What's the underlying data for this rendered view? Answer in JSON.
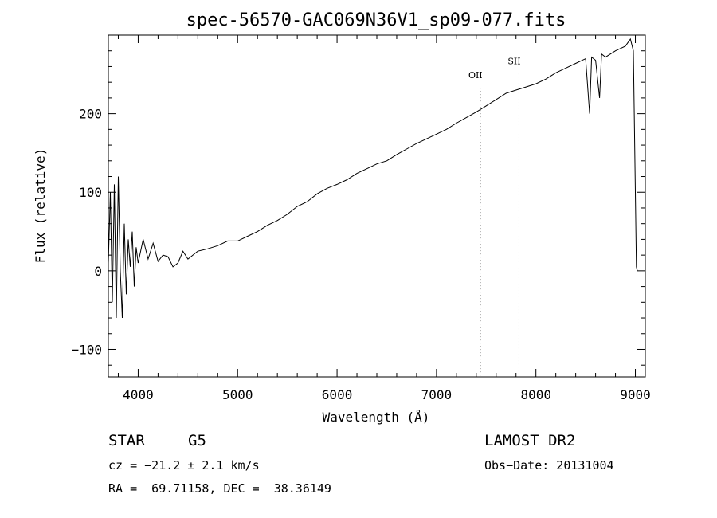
{
  "chart_data": {
    "type": "line",
    "title": "spec-56570-GAC069N36V1_sp09-077.fits",
    "xlabel": "Wavelength (Å)",
    "ylabel": "Flux (relative)",
    "xlim": [
      3700,
      9100
    ],
    "ylim": [
      -135,
      300
    ],
    "xticks": [
      4000,
      5000,
      6000,
      7000,
      8000,
      9000
    ],
    "xtick_labels": [
      "4000",
      "5000",
      "6000",
      "7000",
      "8000",
      "9000"
    ],
    "yticks": [
      -100,
      0,
      100,
      200
    ],
    "ytick_labels": [
      "−100",
      "0",
      "100",
      "200"
    ],
    "grid": false,
    "series": [
      {
        "name": "spectrum",
        "x": [
          3700,
          3720,
          3740,
          3760,
          3780,
          3800,
          3820,
          3840,
          3860,
          3880,
          3900,
          3920,
          3940,
          3960,
          3980,
          4000,
          4050,
          4100,
          4150,
          4200,
          4250,
          4300,
          4350,
          4400,
          4450,
          4500,
          4550,
          4600,
          4700,
          4800,
          4900,
          5000,
          5100,
          5200,
          5300,
          5400,
          5500,
          5600,
          5700,
          5800,
          5900,
          6000,
          6100,
          6200,
          6300,
          6400,
          6500,
          6600,
          6700,
          6800,
          6900,
          7000,
          7100,
          7200,
          7300,
          7400,
          7500,
          7600,
          7700,
          7800,
          7900,
          8000,
          8100,
          8200,
          8300,
          8400,
          8500,
          8540,
          8560,
          8600,
          8640,
          8660,
          8700,
          8800,
          8900,
          8950,
          8980,
          9000,
          9010,
          9020
        ],
        "y": [
          10,
          100,
          -40,
          110,
          -60,
          120,
          0,
          -60,
          60,
          -30,
          40,
          5,
          50,
          -20,
          30,
          10,
          40,
          15,
          35,
          12,
          20,
          18,
          5,
          10,
          25,
          15,
          20,
          25,
          28,
          32,
          38,
          38,
          44,
          50,
          58,
          64,
          72,
          82,
          88,
          98,
          105,
          110,
          116,
          124,
          130,
          136,
          140,
          148,
          155,
          162,
          168,
          174,
          180,
          188,
          195,
          202,
          210,
          218,
          226,
          230,
          234,
          238,
          244,
          252,
          258,
          264,
          270,
          200,
          272,
          268,
          220,
          276,
          272,
          280,
          286,
          295,
          280,
          100,
          5,
          0
        ]
      }
    ],
    "annotations": [
      {
        "label": "OII",
        "x": 7440,
        "y_label": 245
      },
      {
        "label": "SII",
        "x": 7830,
        "y_label": 263
      }
    ]
  },
  "info": {
    "object_class": "STAR",
    "subclass": "G5",
    "survey": "LAMOST DR2",
    "cz": "cz = −21.2 ± 2.1 km/s",
    "obs_date": "Obs−Date: 20131004",
    "coords": "RA =  69.71158, DEC =  38.36149"
  }
}
